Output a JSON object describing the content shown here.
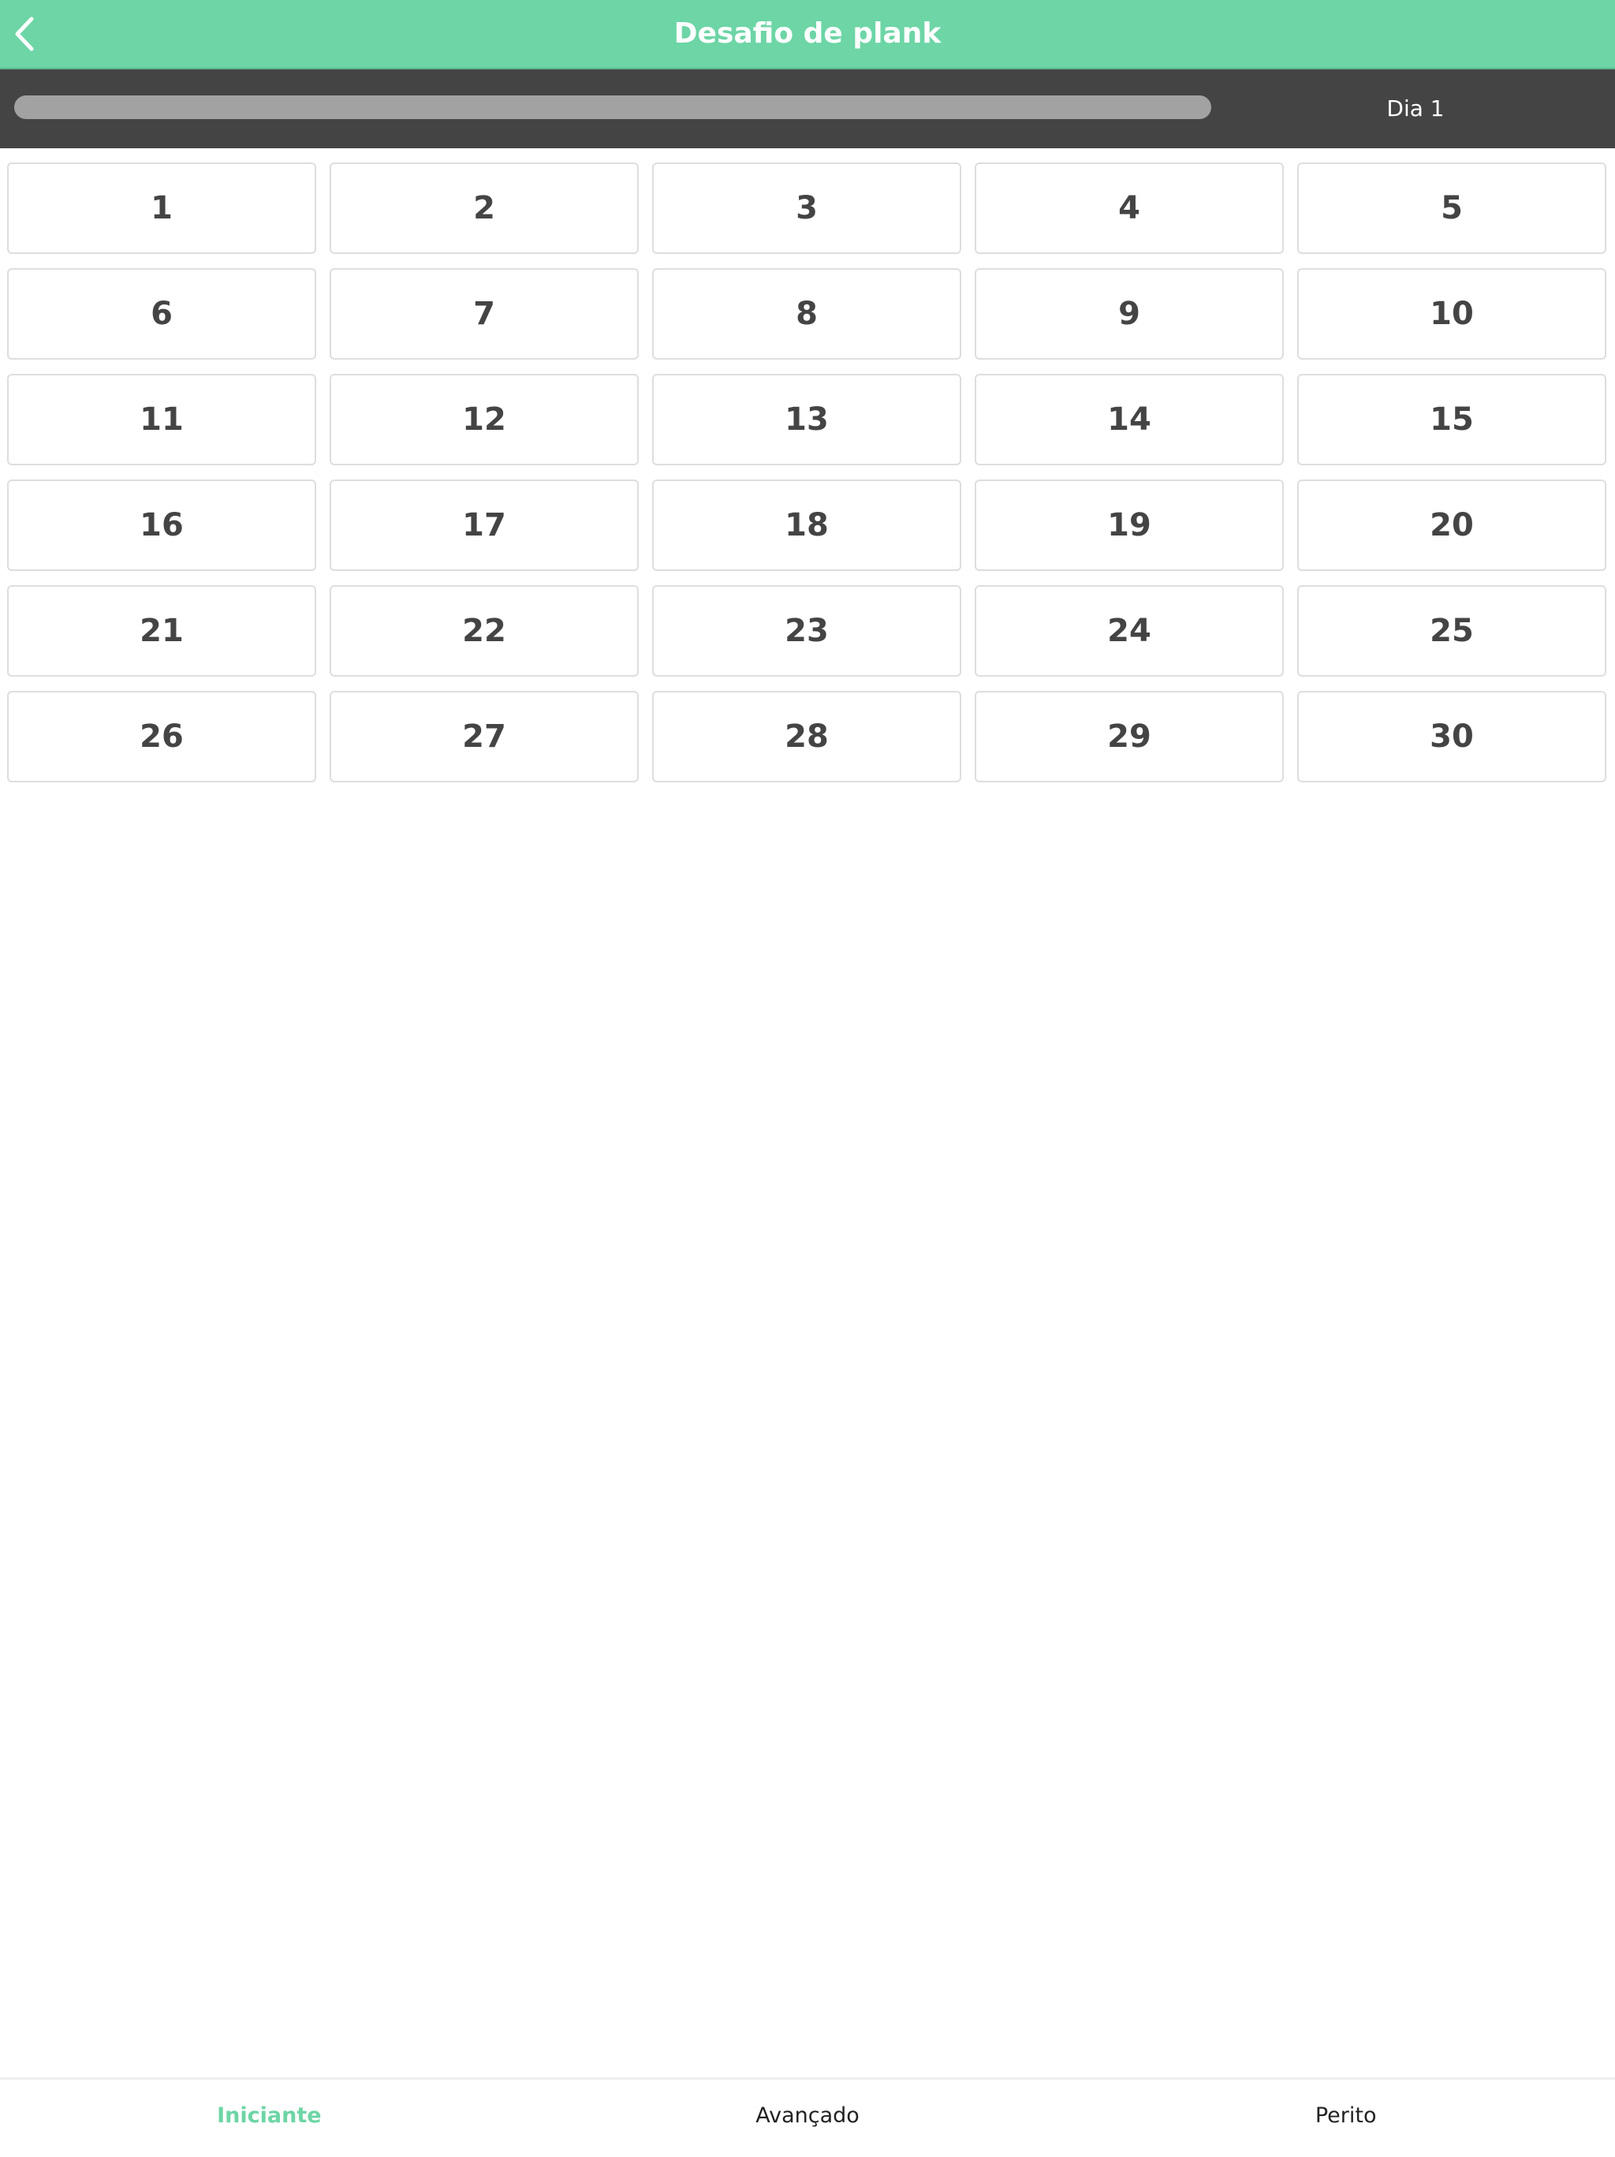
{
  "header": {
    "title": "Desafio de plank",
    "back_icon": "chevron-left-icon"
  },
  "progress": {
    "label": "Dia 1",
    "fraction": 0,
    "track_color": "#a2a2a2"
  },
  "days": [
    "1",
    "2",
    "3",
    "4",
    "5",
    "6",
    "7",
    "8",
    "9",
    "10",
    "11",
    "12",
    "13",
    "14",
    "15",
    "16",
    "17",
    "18",
    "19",
    "20",
    "21",
    "22",
    "23",
    "24",
    "25",
    "26",
    "27",
    "28",
    "29",
    "30"
  ],
  "tabs": [
    {
      "label": "Iniciante",
      "active": true
    },
    {
      "label": "Avançado",
      "active": false
    },
    {
      "label": "Perito",
      "active": false
    }
  ],
  "colors": {
    "accent": "#6dd5a6",
    "dark_bar": "#444444",
    "text": "#444444"
  }
}
